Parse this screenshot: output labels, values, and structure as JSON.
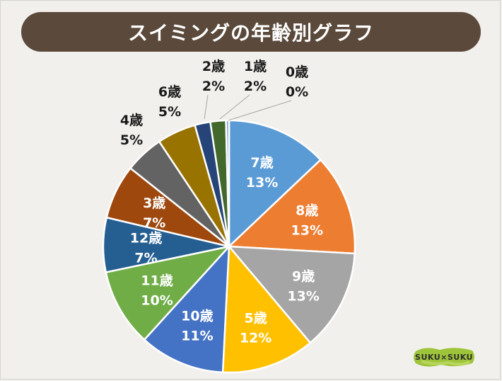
{
  "header": {
    "title": "スイミングの年齢別グラフ"
  },
  "logo": {
    "text": "SUKU×SUKU"
  },
  "colors": {
    "title_bg": "#5b4a3b",
    "background": "#f2f0ec",
    "logo_green": "#9ec43a"
  },
  "chart_data": {
    "type": "pie",
    "title": "スイミングの年齢別グラフ",
    "start": "12 o'clock",
    "direction": "clockwise",
    "slices": [
      {
        "label": "7歳",
        "value": 13,
        "pct": "13%",
        "color": "#5b9bd5",
        "label_pos": "inside"
      },
      {
        "label": "8歳",
        "value": 13,
        "pct": "13%",
        "color": "#ed7d31",
        "label_pos": "inside"
      },
      {
        "label": "9歳",
        "value": 13,
        "pct": "13%",
        "color": "#a5a5a5",
        "label_pos": "inside"
      },
      {
        "label": "5歳",
        "value": 12,
        "pct": "12%",
        "color": "#ffc000",
        "label_pos": "inside"
      },
      {
        "label": "10歳",
        "value": 11,
        "pct": "11%",
        "color": "#4472c4",
        "label_pos": "inside"
      },
      {
        "label": "11歳",
        "value": 10,
        "pct": "10%",
        "color": "#70ad47",
        "label_pos": "inside"
      },
      {
        "label": "12歳",
        "value": 7,
        "pct": "7%",
        "color": "#255e91",
        "label_pos": "inside"
      },
      {
        "label": "3歳",
        "value": 7,
        "pct": "7%",
        "color": "#9e480e",
        "label_pos": "inside"
      },
      {
        "label": "4歳",
        "value": 5,
        "pct": "5%",
        "color": "#636363",
        "label_pos": "outside"
      },
      {
        "label": "6歳",
        "value": 5,
        "pct": "5%",
        "color": "#997300",
        "label_pos": "outside"
      },
      {
        "label": "2歳",
        "value": 2,
        "pct": "2%",
        "color": "#264478",
        "label_pos": "callout"
      },
      {
        "label": "1歳",
        "value": 2,
        "pct": "2%",
        "color": "#43682b",
        "label_pos": "callout"
      },
      {
        "label": "0歳",
        "value": 0.4,
        "pct": "0%",
        "color": "#8faadc",
        "label_pos": "callout"
      }
    ]
  }
}
